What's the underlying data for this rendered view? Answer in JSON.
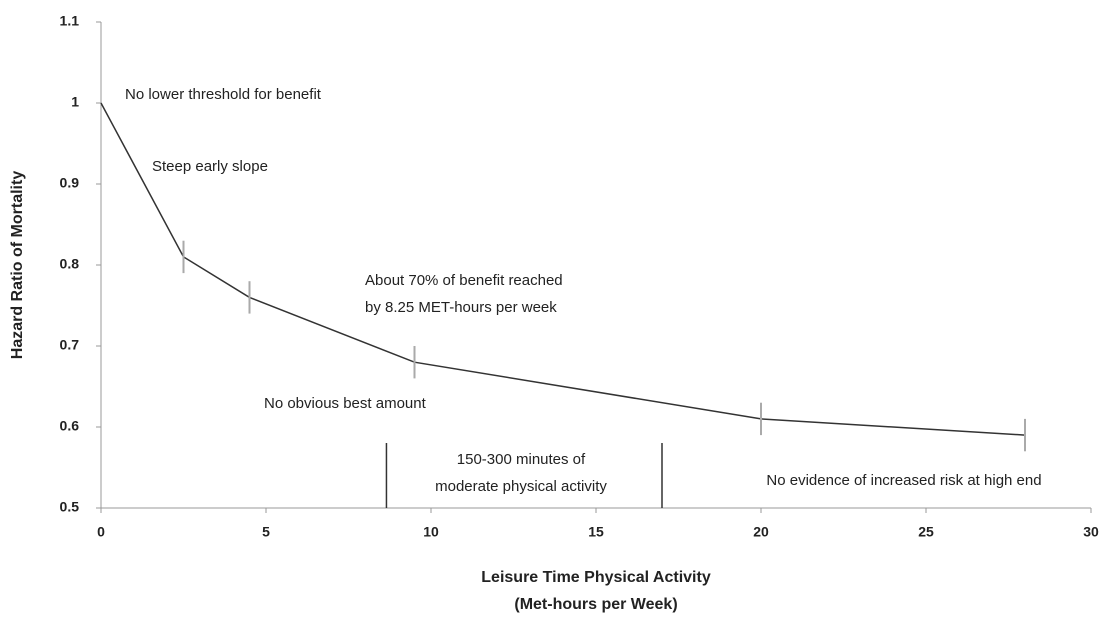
{
  "chart_data": {
    "type": "line",
    "y_label": "Hazard Ratio of Mortality",
    "x_label": [
      "Leisure Time Physical Activity",
      "(Met-hours per Week)"
    ],
    "x": [
      0,
      2.5,
      4.5,
      9.5,
      20,
      28
    ],
    "series": [
      {
        "color": "#333333",
        "values": [
          1.0,
          0.81,
          0.76,
          0.68,
          0.61,
          0.59
        ],
        "errors": [
          null,
          0.02,
          0.02,
          0.02,
          0.02,
          0.02
        ],
        "error_color": "#aaaaaa"
      }
    ],
    "range_lines": [
      8.65,
      17
    ],
    "annotations": [
      "No lower threshold for benefit",
      "Steep early slope",
      "About 70% of benefit reached",
      "by 8.25 MET-hours per week",
      "No obvious best amount",
      "150-300 minutes of",
      "moderate physical activity",
      "No evidence of increased risk at high end"
    ],
    "xlim": [
      0,
      30
    ],
    "xticks": [
      0,
      5,
      10,
      15,
      20,
      25,
      30
    ],
    "ylim": [
      0.5,
      1.1
    ],
    "yticks": [
      0.5,
      0.6,
      0.7,
      0.8,
      0.9,
      1,
      1.1
    ],
    "grid": false
  }
}
